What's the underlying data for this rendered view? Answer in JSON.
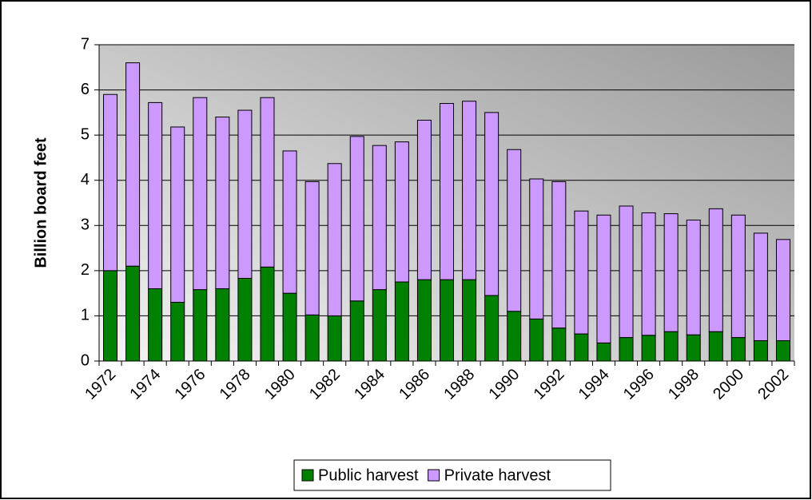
{
  "chart_data": {
    "type": "stacked_bar",
    "y_label": "Billion board feet",
    "categories": [
      "1972",
      null,
      "1974",
      null,
      "1976",
      null,
      "1978",
      null,
      "1980",
      null,
      "1982",
      null,
      "1984",
      null,
      "1986",
      null,
      "1988",
      null,
      "1990",
      null,
      "1992",
      null,
      "1994",
      null,
      "1996",
      null,
      "1998",
      null,
      "2000",
      null,
      "2002"
    ],
    "series": [
      {
        "name": "Public harvest",
        "color": "#008000",
        "values": [
          2.0,
          2.1,
          1.6,
          1.3,
          1.58,
          1.6,
          1.83,
          2.08,
          1.5,
          1.02,
          1.0,
          1.33,
          1.58,
          1.75,
          1.8,
          1.8,
          1.8,
          1.45,
          1.1,
          0.93,
          0.73,
          0.6,
          0.4,
          0.52,
          0.57,
          0.65,
          0.58,
          0.65,
          0.52,
          0.45,
          0.45
        ]
      },
      {
        "name": "Private harvest",
        "color": "#cc99ff",
        "values": [
          3.9,
          4.5,
          4.12,
          3.88,
          4.25,
          3.8,
          3.72,
          3.75,
          3.15,
          2.95,
          3.37,
          3.64,
          3.19,
          3.1,
          3.53,
          3.9,
          3.95,
          4.05,
          3.58,
          3.1,
          3.24,
          2.72,
          2.83,
          2.91,
          2.71,
          2.61,
          2.54,
          2.72,
          2.71,
          2.38,
          2.24
        ]
      }
    ],
    "ylim": [
      0,
      7
    ],
    "yticks": [
      0,
      1,
      2,
      3,
      4,
      5,
      6,
      7
    ],
    "grid": true,
    "legend": "bottom"
  }
}
